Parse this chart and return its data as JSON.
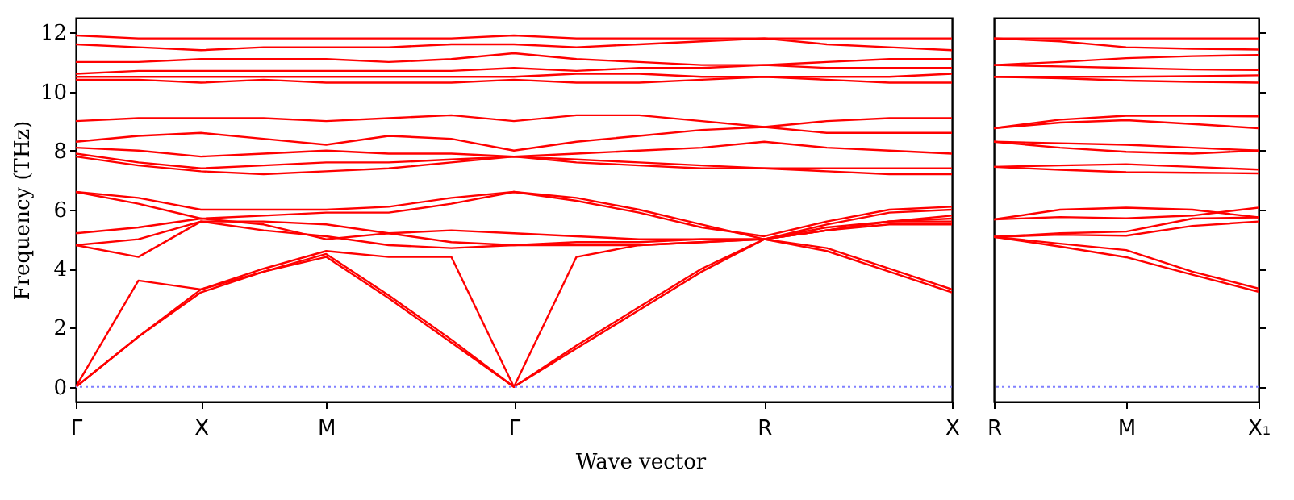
{
  "chart_data": [
    {
      "type": "line",
      "xlabel": "Wave vector",
      "ylabel": "Frequency (THz)",
      "categories": [
        "Γ",
        null,
        "X",
        null,
        "M",
        null,
        null,
        "Γ",
        null,
        null,
        null,
        "R",
        null,
        null,
        "X"
      ],
      "ylim": [
        -0.5,
        12.5
      ],
      "yticks": [
        0,
        2,
        4,
        6,
        8,
        10,
        12
      ],
      "grid": false,
      "ref_lines": [
        {
          "axis": "y",
          "value": 0,
          "color": "#8080ff",
          "line_style": "dotted"
        }
      ],
      "series": [
        {
          "color": "#ff0000",
          "values": [
            0,
            1.7,
            3.2,
            3.9,
            4.4,
            3.0,
            1.5,
            0,
            1.3,
            2.6,
            3.9,
            5.0,
            4.6,
            3.9,
            3.2
          ]
        },
        {
          "color": "#ff0000",
          "values": [
            0,
            1.7,
            3.3,
            3.9,
            4.5,
            3.1,
            1.6,
            0,
            1.4,
            2.7,
            4.0,
            5.0,
            4.7,
            4.0,
            3.3
          ]
        },
        {
          "color": "#ff0000",
          "values": [
            0,
            3.6,
            3.3,
            4.0,
            4.6,
            4.4,
            4.4,
            0,
            4.4,
            4.8,
            4.9,
            5.0,
            5.4,
            5.6,
            5.6
          ]
        },
        {
          "color": "#ff0000",
          "values": [
            4.8,
            4.4,
            5.6,
            5.3,
            5.1,
            4.8,
            4.7,
            4.8,
            4.8,
            4.8,
            4.9,
            5.0,
            5.3,
            5.5,
            5.5
          ]
        },
        {
          "color": "#ff0000",
          "values": [
            4.8,
            5.0,
            5.6,
            5.6,
            5.5,
            5.2,
            4.9,
            4.8,
            4.9,
            4.9,
            5.0,
            5.0,
            5.3,
            5.6,
            5.8
          ]
        },
        {
          "color": "#ff0000",
          "values": [
            5.2,
            5.4,
            5.7,
            5.5,
            5.0,
            5.2,
            5.3,
            5.2,
            5.1,
            5.0,
            5.0,
            5.0,
            5.5,
            5.9,
            6.0
          ]
        },
        {
          "color": "#ff0000",
          "values": [
            6.6,
            6.4,
            6.0,
            6.0,
            6.0,
            6.1,
            6.4,
            6.6,
            6.4,
            6.0,
            5.5,
            5.0,
            5.3,
            5.6,
            5.7
          ]
        },
        {
          "color": "#ff0000",
          "values": [
            6.6,
            6.2,
            5.7,
            5.8,
            5.9,
            5.9,
            6.2,
            6.6,
            6.3,
            5.9,
            5.4,
            5.1,
            5.6,
            6.0,
            6.1
          ]
        },
        {
          "color": "#ff0000",
          "values": [
            7.8,
            7.5,
            7.3,
            7.2,
            7.3,
            7.4,
            7.6,
            7.8,
            7.6,
            7.5,
            7.4,
            7.4,
            7.3,
            7.2,
            7.2
          ]
        },
        {
          "color": "#ff0000",
          "values": [
            7.9,
            7.6,
            7.4,
            7.5,
            7.6,
            7.6,
            7.7,
            7.8,
            7.7,
            7.6,
            7.5,
            7.4,
            7.4,
            7.4,
            7.4
          ]
        },
        {
          "color": "#ff0000",
          "values": [
            8.1,
            8.0,
            7.8,
            7.9,
            8.0,
            7.9,
            7.9,
            7.8,
            7.9,
            8.0,
            8.1,
            8.3,
            8.1,
            8.0,
            7.9
          ]
        },
        {
          "color": "#ff0000",
          "values": [
            8.3,
            8.5,
            8.6,
            8.4,
            8.2,
            8.5,
            8.4,
            8.0,
            8.3,
            8.5,
            8.7,
            8.8,
            8.6,
            8.6,
            8.6
          ]
        },
        {
          "color": "#ff0000",
          "values": [
            9.0,
            9.1,
            9.1,
            9.1,
            9.0,
            9.1,
            9.2,
            9.0,
            9.2,
            9.2,
            9.0,
            8.8,
            9.0,
            9.1,
            9.1
          ]
        },
        {
          "color": "#ff0000",
          "values": [
            10.4,
            10.4,
            10.3,
            10.4,
            10.3,
            10.3,
            10.3,
            10.4,
            10.3,
            10.3,
            10.4,
            10.5,
            10.4,
            10.3,
            10.3
          ]
        },
        {
          "color": "#ff0000",
          "values": [
            10.5,
            10.5,
            10.5,
            10.5,
            10.5,
            10.5,
            10.5,
            10.5,
            10.6,
            10.6,
            10.5,
            10.5,
            10.5,
            10.5,
            10.6
          ]
        },
        {
          "color": "#ff0000",
          "values": [
            10.6,
            10.7,
            10.7,
            10.7,
            10.7,
            10.7,
            10.7,
            10.8,
            10.7,
            10.8,
            10.8,
            10.9,
            10.8,
            10.8,
            10.8
          ]
        },
        {
          "color": "#ff0000",
          "values": [
            11.0,
            11.0,
            11.1,
            11.1,
            11.1,
            11.0,
            11.1,
            11.3,
            11.1,
            11.0,
            10.9,
            10.9,
            11.0,
            11.1,
            11.1
          ]
        },
        {
          "color": "#ff0000",
          "values": [
            11.6,
            11.5,
            11.4,
            11.5,
            11.5,
            11.5,
            11.6,
            11.6,
            11.5,
            11.6,
            11.7,
            11.8,
            11.6,
            11.5,
            11.4
          ]
        },
        {
          "color": "#ff0000",
          "values": [
            11.9,
            11.8,
            11.8,
            11.8,
            11.8,
            11.8,
            11.8,
            11.9,
            11.8,
            11.8,
            11.8,
            11.8,
            11.8,
            11.8,
            11.8
          ]
        }
      ]
    },
    {
      "type": "line",
      "categories": [
        "R",
        null,
        "M",
        null,
        "X₁"
      ],
      "ylim": [
        -0.5,
        12.5
      ],
      "yticks": [
        {
          "value": 0,
          "label": null
        },
        {
          "value": 2,
          "label": null
        },
        {
          "value": 4,
          "label": null
        },
        {
          "value": 6,
          "label": null
        },
        {
          "value": 8,
          "label": null
        },
        {
          "value": 10,
          "label": null
        },
        {
          "value": 12,
          "label": null
        }
      ],
      "tick_labels": "x",
      "grid": false,
      "ref_lines": [
        {
          "axis": "y",
          "value": 0,
          "color": "#8080ff",
          "line_style": "dotted"
        }
      ],
      "series": [
        {
          "color": "#ff0000",
          "values": [
            11.8,
            11.8,
            11.8,
            11.8,
            11.8
          ]
        },
        {
          "color": "#ff0000",
          "values": [
            11.8,
            11.7,
            11.5,
            11.45,
            11.42
          ]
        },
        {
          "color": "#ff0000",
          "values": [
            10.9,
            11.0,
            11.13,
            11.2,
            11.24
          ]
        },
        {
          "color": "#ff0000",
          "values": [
            10.9,
            10.85,
            10.8,
            10.75,
            10.73
          ]
        },
        {
          "color": "#ff0000",
          "values": [
            10.5,
            10.5,
            10.5,
            10.52,
            10.55
          ]
        },
        {
          "color": "#ff0000",
          "values": [
            10.5,
            10.45,
            10.37,
            10.33,
            10.3
          ]
        },
        {
          "color": "#ff0000",
          "values": [
            8.76,
            9.05,
            9.18,
            9.18,
            9.16
          ]
        },
        {
          "color": "#ff0000",
          "values": [
            8.76,
            8.95,
            9.03,
            8.9,
            8.76
          ]
        },
        {
          "color": "#ff0000",
          "values": [
            8.3,
            8.1,
            7.96,
            7.9,
            8.0
          ]
        },
        {
          "color": "#ff0000",
          "values": [
            8.3,
            8.25,
            8.2,
            8.1,
            8.0
          ]
        },
        {
          "color": "#ff0000",
          "values": [
            7.45,
            7.5,
            7.54,
            7.45,
            7.36
          ]
        },
        {
          "color": "#ff0000",
          "values": [
            7.45,
            7.35,
            7.27,
            7.25,
            7.23
          ]
        },
        {
          "color": "#ff0000",
          "values": [
            5.67,
            6.0,
            6.07,
            6.0,
            5.74
          ]
        },
        {
          "color": "#ff0000",
          "values": [
            5.67,
            5.75,
            5.71,
            5.8,
            6.07
          ]
        },
        {
          "color": "#ff0000",
          "values": [
            5.08,
            5.15,
            5.12,
            5.45,
            5.6
          ]
        },
        {
          "color": "#ff0000",
          "values": [
            5.08,
            5.2,
            5.26,
            5.7,
            5.74
          ]
        },
        {
          "color": "#ff0000",
          "values": [
            5.08,
            4.85,
            4.63,
            3.9,
            3.33
          ]
        },
        {
          "color": "#ff0000",
          "values": [
            5.08,
            4.75,
            4.39,
            3.8,
            3.22
          ]
        }
      ]
    }
  ]
}
